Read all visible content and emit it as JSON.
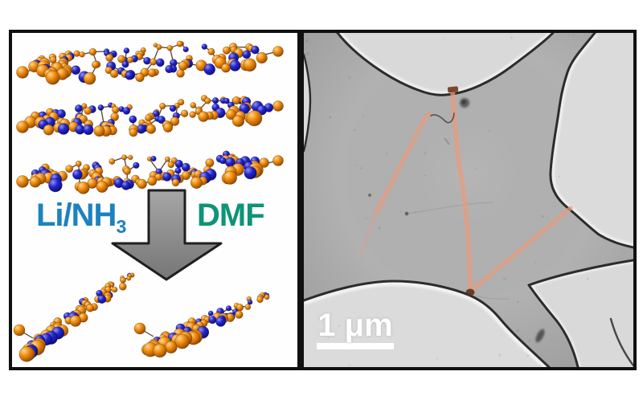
{
  "figure": {
    "left_panel": {
      "reagent_label": {
        "main": "Li/NH",
        "subscript": "3",
        "color": "#1C82C0"
      },
      "solvent_label": {
        "text": "DMF",
        "color": "#0E9477"
      },
      "arrow": {
        "direction": "down",
        "fill": "#8E8E8E"
      },
      "atoms": {
        "orange": "#F08E10",
        "blue": "#2326C6"
      },
      "stacked_layers": 3,
      "separated_ribbons": 2
    },
    "right_panel": {
      "scale_bar": {
        "label": "1 μm",
        "color": "#FFFFFF"
      },
      "ribbon_highlight": "#E79B7E",
      "highlighted_ribbons": 3
    }
  }
}
